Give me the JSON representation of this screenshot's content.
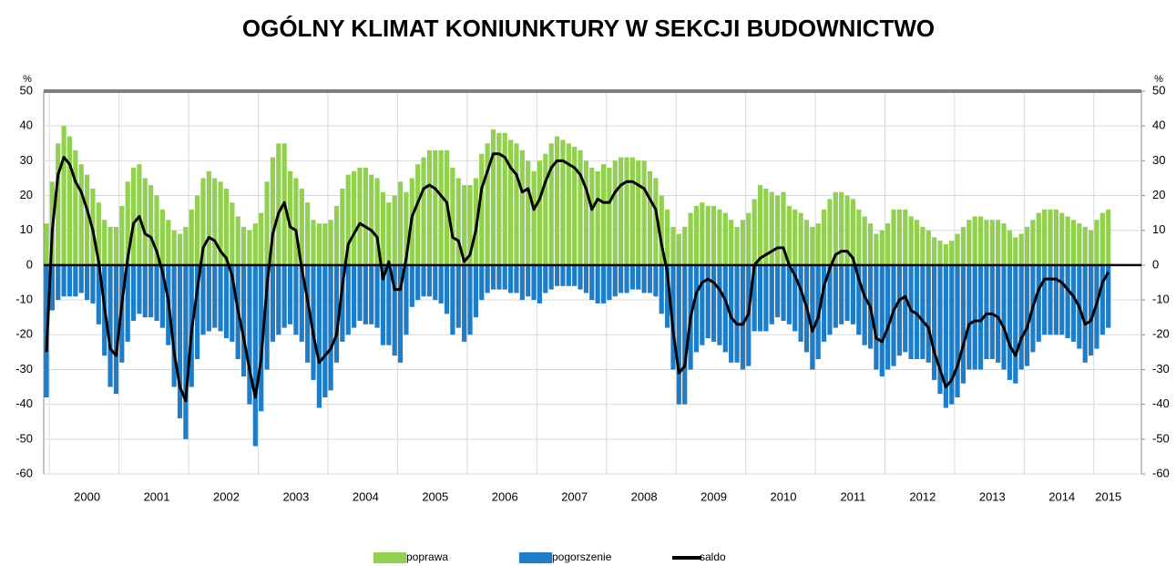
{
  "chart_data": {
    "type": "bar",
    "title": "OGÓLNY KLIMAT KONIUNKTURY W SEKCJI BUDOWNICTWO",
    "y_unit": "%",
    "categories": [
      null,
      null,
      null,
      null,
      null,
      null,
      null,
      "2000",
      null,
      null,
      null,
      null,
      null,
      null,
      null,
      null,
      null,
      null,
      null,
      "2001",
      null,
      null,
      null,
      null,
      null,
      null,
      null,
      null,
      null,
      null,
      null,
      "2002",
      null,
      null,
      null,
      null,
      null,
      null,
      null,
      null,
      null,
      null,
      null,
      "2003",
      null,
      null,
      null,
      null,
      null,
      null,
      null,
      null,
      null,
      null,
      null,
      "2004",
      null,
      null,
      null,
      null,
      null,
      null,
      null,
      null,
      null,
      null,
      null,
      "2005",
      null,
      null,
      null,
      null,
      null,
      null,
      null,
      null,
      null,
      null,
      null,
      "2006",
      null,
      null,
      null,
      null,
      null,
      null,
      null,
      null,
      null,
      null,
      null,
      "2007",
      null,
      null,
      null,
      null,
      null,
      null,
      null,
      null,
      null,
      null,
      null,
      "2008",
      null,
      null,
      null,
      null,
      null,
      null,
      null,
      null,
      null,
      null,
      null,
      "2009",
      null,
      null,
      null,
      null,
      null,
      null,
      null,
      null,
      null,
      null,
      null,
      "2010",
      null,
      null,
      null,
      null,
      null,
      null,
      null,
      null,
      null,
      null,
      null,
      "2011",
      null,
      null,
      null,
      null,
      null,
      null,
      null,
      null,
      null,
      null,
      null,
      "2012",
      null,
      null,
      null,
      null,
      null,
      null,
      null,
      null,
      null,
      null,
      null,
      "2013",
      null,
      null,
      null,
      null,
      null,
      null,
      null,
      null,
      null,
      null,
      null,
      "2014",
      null,
      null,
      null,
      null,
      null,
      null,
      null,
      "2015"
    ],
    "series": [
      {
        "name": "poprawa",
        "type": "bar",
        "color": "#92d050",
        "values": [
          12,
          24,
          35,
          40,
          37,
          33,
          29,
          26,
          22,
          18,
          13,
          11,
          11,
          17,
          24,
          28,
          29,
          25,
          23,
          20,
          16,
          13,
          10,
          9,
          11,
          16,
          20,
          25,
          27,
          25,
          24,
          22,
          18,
          14,
          11,
          10,
          12,
          15,
          24,
          31,
          35,
          35,
          27,
          25,
          22,
          18,
          13,
          12,
          12,
          13,
          17,
          22,
          26,
          27,
          28,
          28,
          26,
          25,
          21,
          18,
          20,
          24,
          21,
          25,
          29,
          31,
          33,
          33,
          33,
          33,
          28,
          25,
          23,
          23,
          25,
          32,
          35,
          39,
          38,
          38,
          36,
          35,
          33,
          30,
          27,
          30,
          32,
          35,
          37,
          36,
          35,
          34,
          33,
          30,
          28,
          27,
          29,
          28,
          30,
          31,
          31,
          31,
          30,
          30,
          27,
          25,
          20,
          16,
          11,
          9,
          11,
          15,
          17,
          18,
          17,
          17,
          16,
          15,
          13,
          11,
          13,
          15,
          19,
          23,
          22,
          21,
          20,
          21,
          17,
          16,
          15,
          13,
          11,
          12,
          16,
          19,
          21,
          21,
          20,
          19,
          16,
          14,
          12,
          9,
          10,
          12,
          16,
          16,
          16,
          14,
          13,
          11,
          10,
          8,
          7,
          6,
          7,
          9,
          11,
          13,
          14,
          14,
          13,
          13,
          13,
          12,
          10,
          8,
          9,
          11,
          13,
          15,
          16,
          16,
          16,
          15,
          14,
          13,
          12,
          11,
          10,
          13,
          15,
          16
        ]
      },
      {
        "name": "pogorszenie",
        "type": "bar",
        "color": "#1f7cc7",
        "values": [
          -38,
          -13,
          -10,
          -9,
          -9,
          -9,
          -8,
          -10,
          -11,
          -17,
          -26,
          -35,
          -37,
          -28,
          -22,
          -16,
          -14,
          -15,
          -15,
          -16,
          -18,
          -23,
          -35,
          -44,
          -50,
          -35,
          -27,
          -20,
          -19,
          -18,
          -19,
          -21,
          -22,
          -27,
          -32,
          -40,
          -52,
          -42,
          -30,
          -22,
          -20,
          -18,
          -17,
          -20,
          -22,
          -28,
          -33,
          -41,
          -38,
          -36,
          -28,
          -22,
          -20,
          -18,
          -16,
          -17,
          -17,
          -18,
          -23,
          -23,
          -26,
          -28,
          -20,
          -12,
          -10,
          -9,
          -9,
          -10,
          -11,
          -14,
          -20,
          -18,
          -22,
          -20,
          -15,
          -10,
          -8,
          -7,
          -7,
          -7,
          -8,
          -8,
          -10,
          -9,
          -10,
          -11,
          -8,
          -7,
          -6,
          -6,
          -6,
          -6,
          -7,
          -8,
          -10,
          -11,
          -11,
          -10,
          -9,
          -8,
          -8,
          -7,
          -7,
          -8,
          -8,
          -9,
          -14,
          -18,
          -30,
          -40,
          -40,
          -30,
          -25,
          -23,
          -21,
          -22,
          -23,
          -25,
          -28,
          -28,
          -30,
          -29,
          -19,
          -19,
          -19,
          -17,
          -15,
          -16,
          -17,
          -19,
          -22,
          -25,
          -30,
          -27,
          -22,
          -20,
          -18,
          -17,
          -16,
          -17,
          -20,
          -23,
          -24,
          -30,
          -32,
          -30,
          -29,
          -26,
          -25,
          -27,
          -27,
          -27,
          -28,
          -33,
          -37,
          -41,
          -40,
          -38,
          -34,
          -30,
          -30,
          -30,
          -27,
          -27,
          -28,
          -30,
          -33,
          -34,
          -30,
          -29,
          -25,
          -22,
          -20,
          -20,
          -20,
          -20,
          -21,
          -22,
          -24,
          -28,
          -26,
          -24,
          -20,
          -18
        ]
      },
      {
        "name": "saldo",
        "type": "line",
        "color": "#000000",
        "values": [
          -25,
          10,
          26,
          31,
          29,
          24,
          21,
          16,
          10,
          1,
          -12,
          -24,
          -26,
          -11,
          2,
          12,
          14,
          9,
          8,
          4,
          -2,
          -10,
          -25,
          -35,
          -39,
          -19,
          -7,
          5,
          8,
          7,
          4,
          2,
          -3,
          -13,
          -21,
          -30,
          -38,
          -27,
          -6,
          9,
          15,
          18,
          11,
          10,
          -1,
          -10,
          -20,
          -28,
          -26,
          -24,
          -20,
          -6,
          6,
          9,
          12,
          11,
          10,
          8,
          -4,
          1,
          -7,
          -7,
          2,
          14,
          18,
          22,
          23,
          22,
          20,
          18,
          8,
          7,
          1,
          3,
          10,
          22,
          27,
          32,
          32,
          31,
          28,
          26,
          21,
          22,
          16,
          19,
          24,
          28,
          30,
          30,
          29,
          28,
          26,
          22,
          16,
          19,
          18,
          18,
          21,
          23,
          24,
          24,
          23,
          22,
          19,
          16,
          6,
          -2,
          -19,
          -31,
          -29,
          -15,
          -8,
          -5,
          -4,
          -5,
          -7,
          -10,
          -15,
          -17,
          -17,
          -14,
          0,
          2,
          3,
          4,
          5,
          5,
          0,
          -3,
          -7,
          -12,
          -19,
          -15,
          -6,
          -1,
          3,
          4,
          4,
          2,
          -4,
          -9,
          -12,
          -21,
          -22,
          -18,
          -13,
          -10,
          -9,
          -13,
          -14,
          -16,
          -18,
          -25,
          -30,
          -35,
          -33,
          -29,
          -23,
          -17,
          -16,
          -16,
          -14,
          -14,
          -15,
          -18,
          -23,
          -26,
          -21,
          -18,
          -12,
          -7,
          -4,
          -4,
          -4,
          -5,
          -7,
          -9,
          -12,
          -17,
          -16,
          -11,
          -5,
          -2
        ]
      }
    ],
    "ylim": [
      -60,
      50
    ],
    "yticks": [
      -60,
      -50,
      -40,
      -30,
      -20,
      -10,
      0,
      10,
      20,
      30,
      40,
      50
    ],
    "y2lim": [
      -60,
      50
    ],
    "y2ticks": [
      -60,
      -50,
      -40,
      -30,
      -20,
      -10,
      0,
      10,
      20,
      30,
      40,
      50
    ],
    "grid": true,
    "legend": "bottom"
  }
}
